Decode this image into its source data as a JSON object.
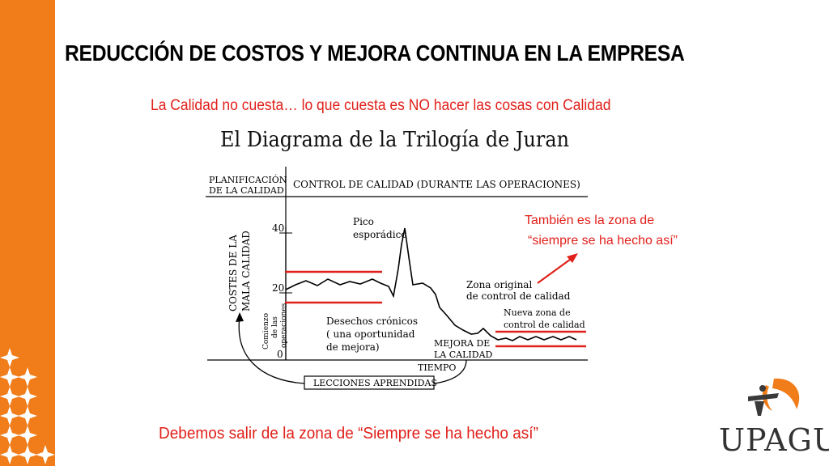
{
  "title": "REDUCCIÓN DE COSTOS Y MEJORA CONTINUA EN LA EMPRESA",
  "subtitle": "La Calidad no cuesta… lo que cuesta es NO hacer las cosas con Calidad",
  "footer": "Debemos salir de la zona de “Siempre se ha  hecho así”",
  "note": {
    "line1": "También es la zona de",
    "line2": "“siempre se ha hecho así”"
  },
  "brand": {
    "logo_text": "UPAGU",
    "orange": "#F07D1A",
    "accent_red": "#E0201A"
  },
  "diagram": {
    "heading": "El Diagrama de la Trilogía de Juran",
    "planning_label": [
      "PLANIFICACIÓN",
      "DE LA CALIDAD"
    ],
    "control_label": "CONTROL DE CALIDAD (DURANTE LAS OPERACIONES)",
    "y_axis_label": [
      "COSTES DE LA",
      "MALA CALIDAD"
    ],
    "y_ticks": [
      "40",
      "20",
      "0"
    ],
    "start_label": [
      "Comienzo",
      "de las",
      "operaciones"
    ],
    "peak_label": [
      "Pico",
      "esporádico"
    ],
    "chronic_label": [
      "Desechos crónicos",
      "( una oportunidad",
      "de mejora)"
    ],
    "original_zone_label": [
      "Zona original",
      "de control de calidad"
    ],
    "new_zone_label": [
      "Nueva zona de",
      "control de calidad"
    ],
    "improvement_label": [
      "MEJORA DE",
      "LA CALIDAD"
    ],
    "x_axis_label": "TIEMPO",
    "lessons_label": "LECCIONES APRENDIDAS"
  }
}
